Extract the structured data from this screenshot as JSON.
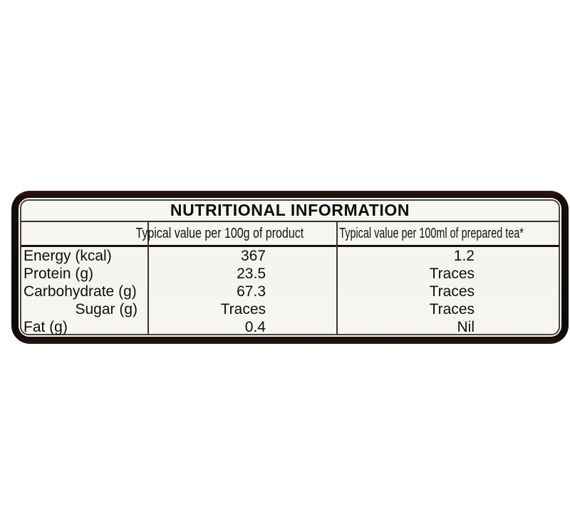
{
  "label": {
    "title": "NUTRITIONAL INFORMATION",
    "columns": {
      "c1": "",
      "c2": "Typical value per 100g of product",
      "c3": "Typical value per 100ml of prepared tea*"
    },
    "rows": [
      {
        "name": "Energy (kcal)",
        "per_100g": "367",
        "per_100ml": "1.2"
      },
      {
        "name": "Protein (g)",
        "per_100g": "23.5",
        "per_100ml": "Traces"
      },
      {
        "name": "Carbohydrate (g)",
        "per_100g": "67.3",
        "per_100ml": "Traces"
      },
      {
        "name": "Sugar (g)",
        "per_100g": "Traces",
        "per_100ml": "Traces"
      },
      {
        "name": "Fat (g)",
        "per_100g": "0.4",
        "per_100ml": "Nil"
      }
    ],
    "colors": {
      "frame": "#0d0a09",
      "frame_top_tint": "#33160f",
      "paper": "#f7f6f1",
      "rule": "#3a362e",
      "header_rule": "#16130e",
      "text": "#0f0f0e"
    }
  }
}
